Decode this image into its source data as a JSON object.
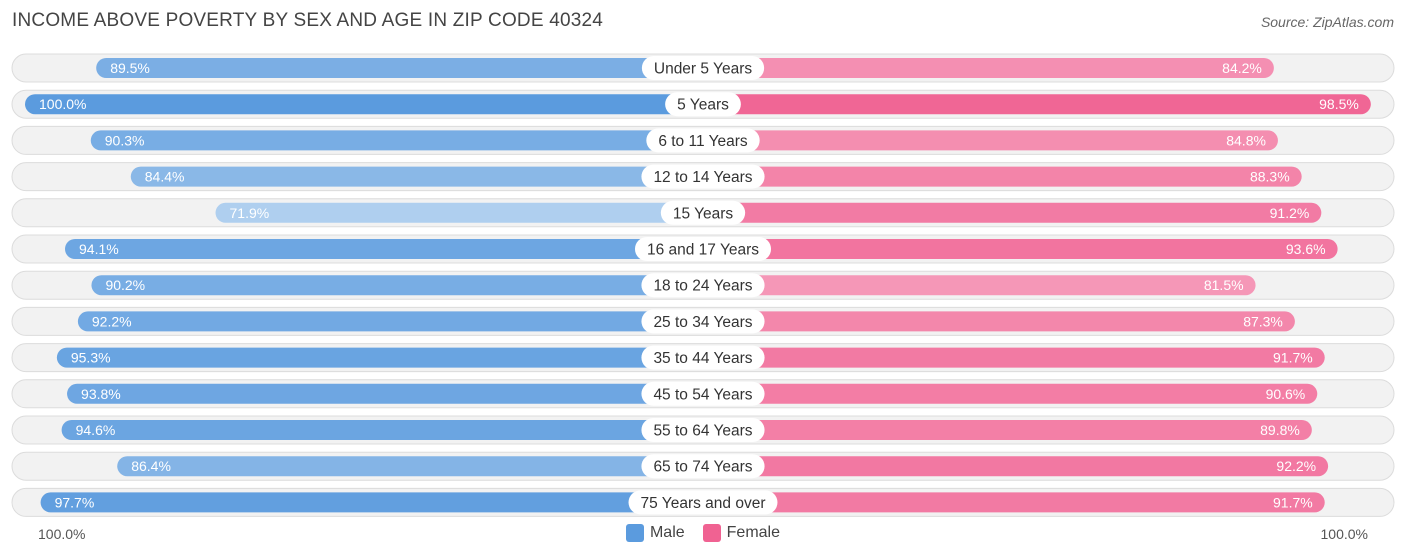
{
  "chart_data": {
    "type": "bar",
    "orientation": "horizontal-diverging",
    "title": "INCOME ABOVE POVERTY BY SEX AND AGE IN ZIP CODE 40324",
    "source": "Source: ZipAtlas.com",
    "categories": [
      "Under 5 Years",
      "5 Years",
      "6 to 11 Years",
      "12 to 14 Years",
      "15 Years",
      "16 and 17 Years",
      "18 to 24 Years",
      "25 to 34 Years",
      "35 to 44 Years",
      "45 to 54 Years",
      "55 to 64 Years",
      "65 to 74 Years",
      "75 Years and over"
    ],
    "series": [
      {
        "name": "Male",
        "color": "#5b9bde",
        "values": [
          89.5,
          100.0,
          90.3,
          84.4,
          71.9,
          94.1,
          90.2,
          92.2,
          95.3,
          93.8,
          94.6,
          86.4,
          97.7
        ]
      },
      {
        "name": "Female",
        "color": "#f06292",
        "values": [
          84.2,
          98.5,
          84.8,
          88.3,
          91.2,
          93.6,
          81.5,
          87.3,
          91.7,
          90.6,
          89.8,
          92.2,
          91.7
        ]
      }
    ],
    "value_labels": {
      "Male": [
        "89.5%",
        "100.0%",
        "90.3%",
        "84.4%",
        "71.9%",
        "94.1%",
        "90.2%",
        "92.2%",
        "95.3%",
        "93.8%",
        "94.6%",
        "86.4%",
        "97.7%"
      ],
      "Female": [
        "84.2%",
        "98.5%",
        "84.8%",
        "88.3%",
        "91.2%",
        "93.6%",
        "81.5%",
        "87.3%",
        "91.7%",
        "90.6%",
        "89.8%",
        "92.2%",
        "91.7%"
      ]
    },
    "axis_left_label": "100.0%",
    "axis_right_label": "100.0%",
    "xlim": [
      0,
      100
    ],
    "legend": [
      "Male",
      "Female"
    ],
    "legend_position": "bottom-center"
  }
}
